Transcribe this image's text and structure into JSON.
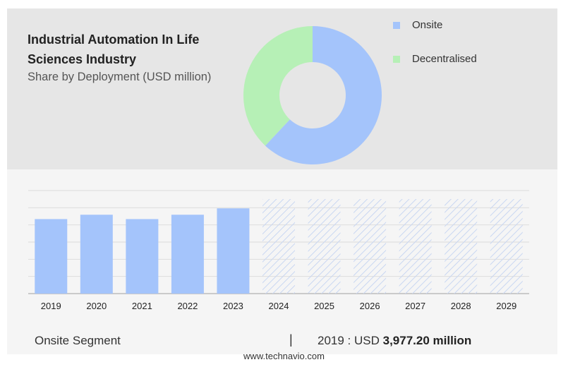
{
  "header": {
    "title": "Industrial Automation In Life Sciences Industry",
    "subtitle": "Share by Deployment (USD million)"
  },
  "legend": [
    {
      "label": "Onsite",
      "color": "#a4c4fb"
    },
    {
      "label": "Decentralised",
      "color": "#b6f0b6"
    }
  ],
  "colors": {
    "bar": "#a4c4fb",
    "forecast_hatch": "#c9d7f2",
    "top_bg": "#e6e6e6",
    "bottom_bg": "#f5f5f5"
  },
  "footer": {
    "segment_label": "Onsite Segment",
    "separator": "|",
    "year_prefix": "2019 : USD",
    "value_text": "3,977.20 million",
    "source": "www.technavio.com"
  },
  "chart_data": [
    {
      "type": "pie",
      "style": "donut",
      "labels": [
        "Onsite",
        "Decentralised"
      ],
      "values": [
        62,
        38
      ]
    },
    {
      "type": "bar",
      "categories": [
        "2019",
        "2020",
        "2021",
        "2022",
        "2023",
        "2024",
        "2025",
        "2026",
        "2027",
        "2028",
        "2029"
      ],
      "values": [
        3977.2,
        4210,
        3977.2,
        4210,
        4550,
        null,
        null,
        null,
        null,
        null,
        null
      ],
      "forecast": [
        false,
        false,
        false,
        false,
        false,
        true,
        true,
        true,
        true,
        true,
        true
      ],
      "ylim": [
        0,
        5500
      ],
      "grid": true
    }
  ]
}
